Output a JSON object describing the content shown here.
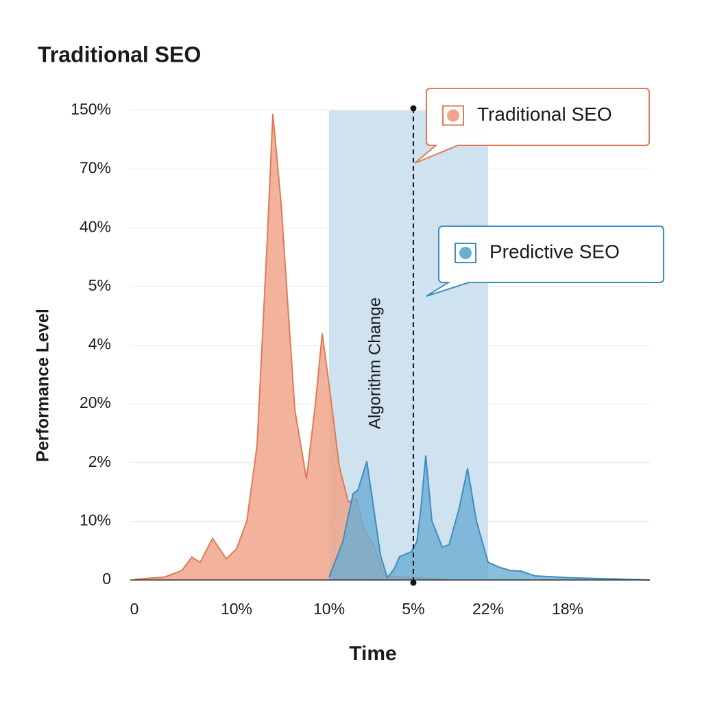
{
  "chart_data": {
    "type": "area",
    "title": "Traditional SEO",
    "x_label": "Time",
    "y_label": "Performance Level",
    "xlim": [
      0,
      100
    ],
    "xticks": [
      {
        "value": 0,
        "label": "0"
      },
      {
        "value": 19.81,
        "label": "10%"
      },
      {
        "value": 37.77,
        "label": "10%"
      },
      {
        "value": 54.12,
        "label": "5%"
      },
      {
        "value": 68.62,
        "label": "22%"
      },
      {
        "value": 84.04,
        "label": "18%"
      }
    ],
    "ylim": [
      0,
      8
    ],
    "yticks": [
      {
        "value": 0,
        "label": "0"
      },
      {
        "value": 1,
        "label": "10%"
      },
      {
        "value": 2,
        "label": "2%"
      },
      {
        "value": 3,
        "label": "20%"
      },
      {
        "value": 4,
        "label": "4%"
      },
      {
        "value": 5,
        "label": "5%"
      },
      {
        "value": 6,
        "label": "40%"
      },
      {
        "value": 7,
        "label": "70%"
      },
      {
        "value": 8,
        "label": "150%"
      }
    ],
    "grid": true,
    "highlight": {
      "x": [
        37.77,
        68.62
      ],
      "color": "#cfe2ef"
    },
    "annotation": {
      "label": "Algorithm Change",
      "x": 54.12
    },
    "series": [
      {
        "name": "Traditional SEO",
        "color": "#e07a55",
        "x": [
          0,
          5.85,
          9.18,
          11.17,
          12.77,
          15.16,
          17.82,
          19.81,
          21.81,
          23.8,
          25.8,
          26.86,
          28.46,
          31.12,
          33.38,
          35.11,
          36.44,
          37.77,
          39.76,
          41.49,
          43.09,
          44.41,
          46.41,
          48.4,
          60.37
        ],
        "values": [
          0.01,
          0.05,
          0.16,
          0.39,
          0.3,
          0.71,
          0.36,
          0.53,
          1.0,
          2.29,
          5.84,
          7.94,
          6.42,
          2.9,
          1.72,
          2.99,
          4.2,
          3.33,
          1.93,
          1.33,
          1.38,
          0.89,
          0.6,
          0.07,
          0.01
        ]
      },
      {
        "name": "Predictive SEO",
        "color": "#3f8dbd",
        "x": [
          37.77,
          40.43,
          42.42,
          43.35,
          45.08,
          46.41,
          47.74,
          49.07,
          50.4,
          51.46,
          53.72,
          54.79,
          55.59,
          56.52,
          57.71,
          59.71,
          61.04,
          63.03,
          64.63,
          66.36,
          68.62,
          71.01,
          73.01,
          75.0,
          77.66,
          84.31,
          100
        ],
        "values": [
          0.05,
          0.65,
          1.47,
          1.53,
          2.02,
          1.23,
          0.42,
          0.04,
          0.19,
          0.4,
          0.48,
          0.65,
          1.23,
          2.12,
          1.01,
          0.56,
          0.6,
          1.23,
          1.9,
          1.0,
          0.3,
          0.21,
          0.16,
          0.15,
          0.07,
          0.04,
          0.0
        ]
      }
    ]
  }
}
